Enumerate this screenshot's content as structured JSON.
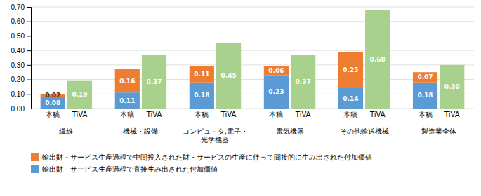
{
  "chart_data": {
    "type": "bar",
    "stacked": true,
    "data_labels": true,
    "grid": true,
    "categories": [
      "繊維",
      "機械・設備",
      "コンピュ－タ,電子・\n光学機器",
      "電気機器",
      "その他輸送機械",
      "製造業全体"
    ],
    "groups": [
      {
        "label": "本稿",
        "series": [
          {
            "name": "輸出財・サービス生産過程で直接生み出された付加価値",
            "color": "#5b9bd5",
            "values": [
              0.08,
              0.11,
              0.18,
              0.23,
              0.14,
              0.18
            ],
            "value_labels": [
              "0.08",
              "0.11",
              "0.18",
              "0.23",
              "0.14",
              "0.18"
            ]
          },
          {
            "name": "輸出財・サービス生産過程で中間投入された財・サービスの生産に伴って間接的に生み出された付加価値",
            "color": "#ed7d31",
            "values": [
              0.02,
              0.16,
              0.11,
              0.06,
              0.25,
              0.07
            ],
            "value_labels": [
              "0.02",
              "0.16",
              "0.11",
              "0.06",
              "0.25",
              "0.07"
            ]
          }
        ]
      },
      {
        "label": "TiVA",
        "series": [
          {
            "color": "#a9d18e",
            "values": [
              0.19,
              0.37,
              0.45,
              0.37,
              0.68,
              0.3
            ],
            "value_labels": [
              "0.19",
              "0.37",
              "0.45",
              "0.37",
              "0.68",
              "0.30"
            ]
          }
        ]
      }
    ],
    "ylim": [
      0,
      0.7
    ],
    "yticks": [
      {
        "value": 0.0,
        "label": "0.00"
      },
      {
        "value": 0.1,
        "label": "0.10"
      },
      {
        "value": 0.2,
        "label": "0.20"
      },
      {
        "value": 0.3,
        "label": "0.30"
      },
      {
        "value": 0.4,
        "label": "0.40"
      },
      {
        "value": 0.5,
        "label": "0.50"
      },
      {
        "value": 0.6,
        "label": "0.60"
      },
      {
        "value": 0.7,
        "label": "0.70"
      }
    ]
  }
}
